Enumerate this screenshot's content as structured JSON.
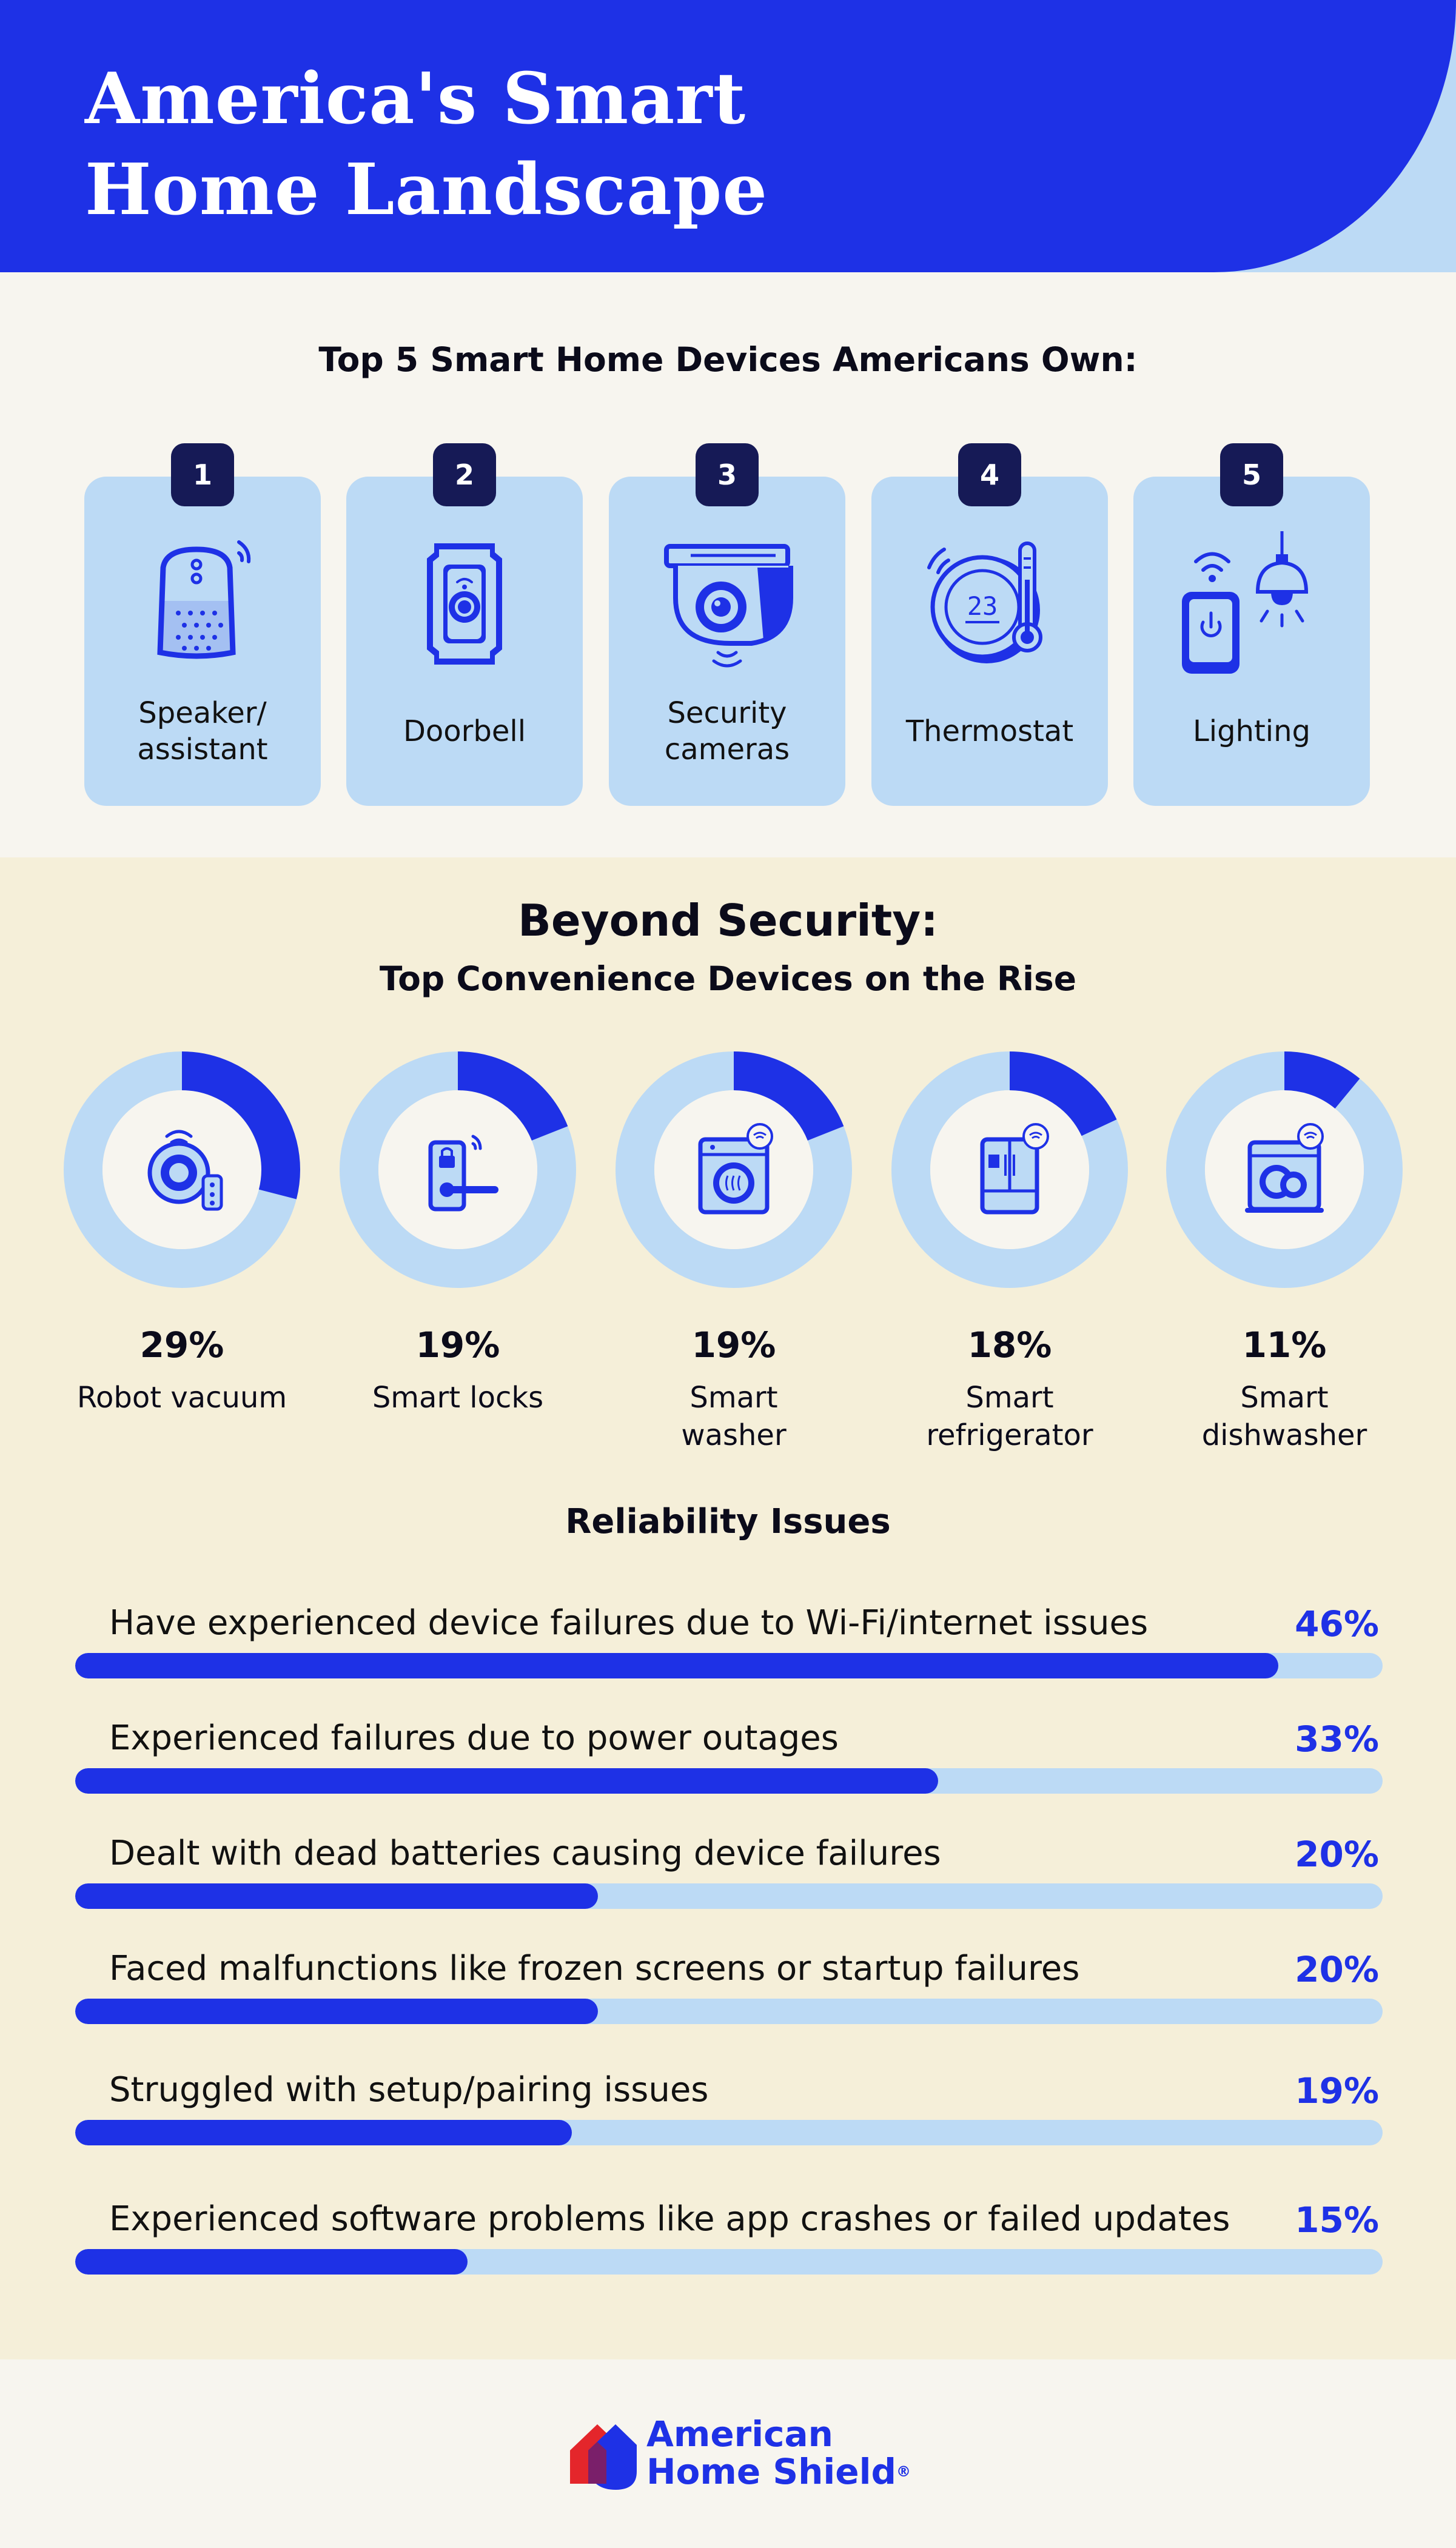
{
  "header": {
    "title_line1": "America's Smart",
    "title_line2": "Home Landscape"
  },
  "devices": {
    "heading": "Top 5 Smart Home Devices Americans Own:",
    "items": [
      {
        "rank": "1",
        "label_line1": "Speaker/",
        "label_line2": "assistant",
        "icon": "smart-speaker-icon"
      },
      {
        "rank": "2",
        "label_line1": "Doorbell",
        "label_line2": "",
        "icon": "doorbell-icon"
      },
      {
        "rank": "3",
        "label_line1": "Security",
        "label_line2": "cameras",
        "icon": "security-camera-icon"
      },
      {
        "rank": "4",
        "label_line1": "Thermostat",
        "label_line2": "",
        "icon": "thermostat-icon"
      },
      {
        "rank": "5",
        "label_line1": "Lighting",
        "label_line2": "",
        "icon": "lighting-icon"
      }
    ]
  },
  "convenience": {
    "heading": "Beyond Security:",
    "subheading": "Top Convenience Devices on the Rise"
  },
  "reliability": {
    "heading": "Reliability Issues"
  },
  "chart_data": [
    {
      "type": "pie",
      "title": "Top Convenience Devices on the Rise",
      "categories": [
        "Robot vacuum",
        "Smart locks",
        "Smart washer",
        "Smart refrigerator",
        "Smart dishwasher"
      ],
      "values": [
        29,
        19,
        19,
        18,
        11
      ],
      "value_labels": [
        "29%",
        "19%",
        "19%",
        "18%",
        "11%"
      ],
      "label_lines": [
        [
          "Robot vacuum",
          ""
        ],
        [
          "Smart locks",
          ""
        ],
        [
          "Smart",
          "washer"
        ],
        [
          "Smart",
          "refrigerator"
        ],
        [
          "Smart",
          "dishwasher"
        ]
      ],
      "icons": [
        "robot-vacuum-icon",
        "smart-lock-icon",
        "smart-washer-icon",
        "smart-refrigerator-icon",
        "smart-dishwasher-icon"
      ],
      "colors": {
        "fill": "#1e31e6",
        "track": "#bcdaf5"
      }
    },
    {
      "type": "bar",
      "title": "Reliability Issues",
      "categories": [
        "Have experienced device failures due to Wi-Fi/internet issues",
        "Experienced failures due to power outages",
        "Dealt with dead batteries causing device failures",
        "Faced malfunctions like frozen screens or startup failures",
        "Struggled with setup/pairing issues",
        "Experienced software problems like app crashes or failed updates"
      ],
      "values": [
        46,
        33,
        20,
        20,
        19,
        15
      ],
      "value_labels": [
        "46%",
        "33%",
        "20%",
        "20%",
        "19%",
        "15%"
      ],
      "xlim": [
        0,
        50
      ],
      "colors": {
        "fill": "#1e31e6",
        "track": "#bcdaf5"
      }
    }
  ],
  "footer": {
    "logo_line1": "American",
    "logo_line2": "Home Shield",
    "logo_tm": "®"
  }
}
